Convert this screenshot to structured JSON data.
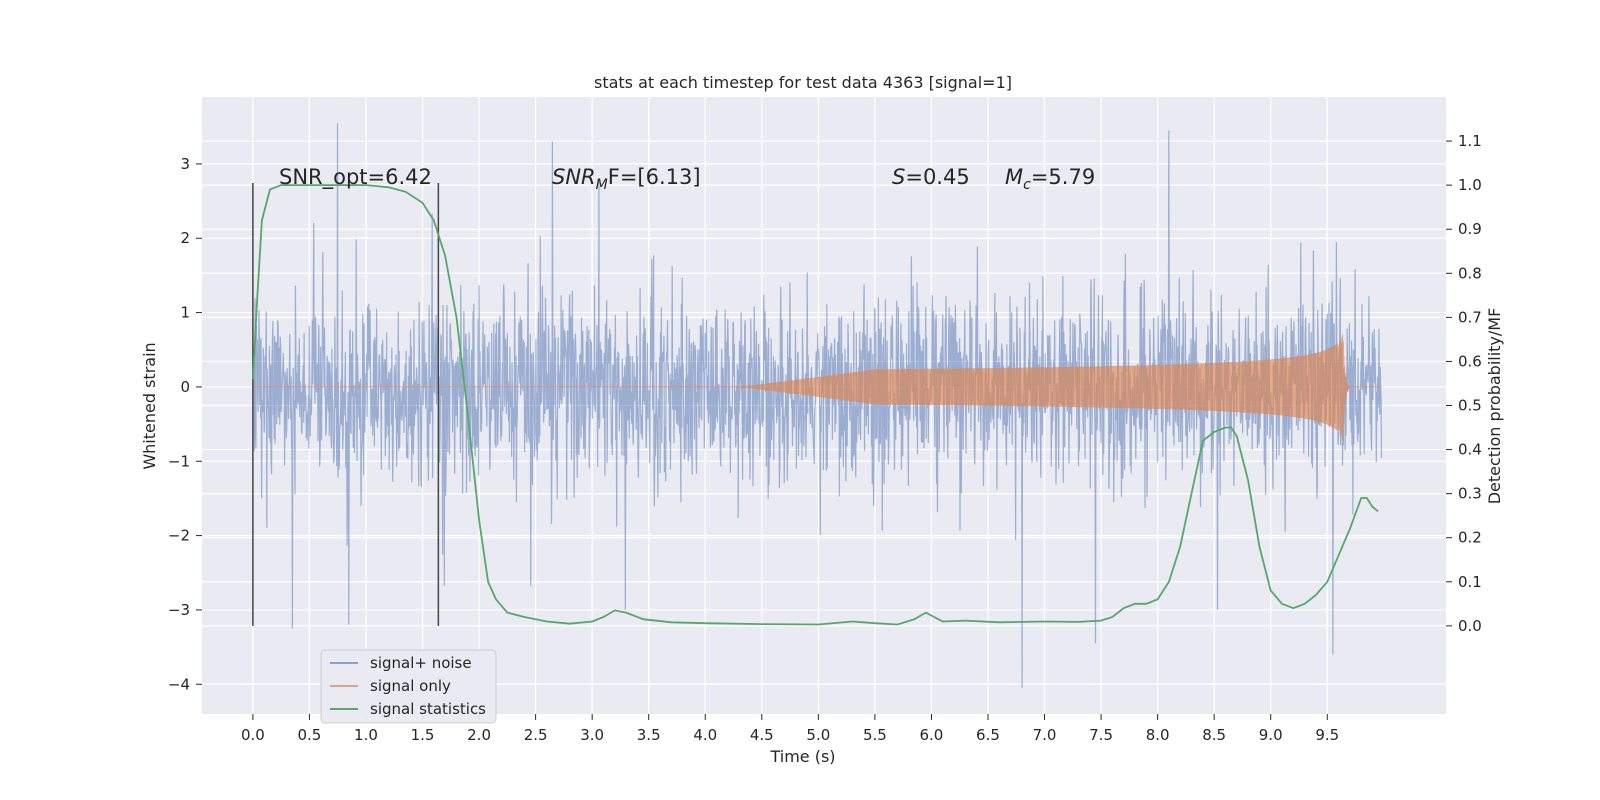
{
  "chart_data": {
    "type": "line",
    "title": "stats at each timestep for test data 4363 [signal=1]",
    "xlabel": "Time (s)",
    "ylabel": "Whitened strain",
    "y2label": "Detection probability/MF",
    "xlim": [
      -0.45,
      10.55
    ],
    "ylim": [
      -4.4,
      3.9
    ],
    "y2lim": [
      -0.2,
      1.2
    ],
    "x_ticks": [
      "0.0",
      "0.5",
      "1.0",
      "1.5",
      "2.0",
      "2.5",
      "3.0",
      "3.5",
      "4.0",
      "4.5",
      "5.0",
      "5.5",
      "6.0",
      "6.5",
      "7.0",
      "7.5",
      "8.0",
      "8.5",
      "9.0",
      "9.5"
    ],
    "y_ticks": [
      "3",
      "2",
      "1",
      "0",
      "−1",
      "−2",
      "−3",
      "−4"
    ],
    "y2_ticks": [
      "1.1",
      "1.0",
      "0.9",
      "0.8",
      "0.7",
      "0.6",
      "0.5",
      "0.4",
      "0.3",
      "0.2",
      "0.1",
      "0.0"
    ],
    "grid": true,
    "legend_position": "lower-left",
    "annotations": {
      "snr_opt": "SNR_opt=6.42",
      "snr_mf_sym": "SNR",
      "snr_mf_sub": "M",
      "snr_mf_rest": "F=[6.13]",
      "s_sym": "S",
      "s_val": "=0.45",
      "mc_sym": "M",
      "mc_sub": "c",
      "mc_val": "=5.79"
    },
    "vertical_lines_x": [
      0.0,
      1.64
    ],
    "series": [
      {
        "name": "signal+ noise",
        "color": "#4c72b0",
        "axis": "left",
        "t_range": [
          0.0,
          9.98
        ],
        "envelope_typical": [
          -1.6,
          1.6
        ],
        "extremes": [
          {
            "x": 0.75,
            "y": 3.55
          },
          {
            "x": 2.65,
            "y": 3.3
          },
          {
            "x": 8.1,
            "y": 3.45
          },
          {
            "x": 6.8,
            "y": -4.05
          },
          {
            "x": 9.55,
            "y": -3.6
          },
          {
            "x": 7.45,
            "y": -3.45
          },
          {
            "x": 0.35,
            "y": -3.25
          },
          {
            "x": 0.85,
            "y": -3.2
          }
        ]
      },
      {
        "name": "signal only",
        "color": "#dd8452",
        "axis": "left",
        "chirp_start": 4.3,
        "merger_time": 9.64,
        "peak_amplitude": 0.72,
        "t_end": 9.98
      },
      {
        "name": "signal statistics",
        "color": "#55a868",
        "axis": "right",
        "x": [
          0.0,
          0.04,
          0.08,
          0.15,
          0.25,
          0.4,
          0.6,
          0.8,
          1.0,
          1.2,
          1.35,
          1.5,
          1.6,
          1.7,
          1.8,
          1.9,
          2.0,
          2.08,
          2.15,
          2.25,
          2.4,
          2.6,
          2.8,
          3.0,
          3.1,
          3.2,
          3.3,
          3.45,
          3.7,
          4.0,
          4.5,
          5.0,
          5.3,
          5.5,
          5.7,
          5.85,
          5.95,
          6.1,
          6.3,
          6.6,
          7.0,
          7.3,
          7.5,
          7.6,
          7.7,
          7.8,
          7.9,
          8.0,
          8.1,
          8.2,
          8.3,
          8.4,
          8.5,
          8.6,
          8.65,
          8.7,
          8.8,
          8.9,
          9.0,
          9.1,
          9.2,
          9.3,
          9.4,
          9.5,
          9.6,
          9.7,
          9.8,
          9.85,
          9.9,
          9.95
        ],
        "y": [
          0.56,
          0.75,
          0.92,
          0.99,
          1.0,
          1.0,
          1.0,
          1.0,
          1.0,
          0.995,
          0.985,
          0.96,
          0.92,
          0.84,
          0.7,
          0.48,
          0.24,
          0.1,
          0.06,
          0.03,
          0.02,
          0.01,
          0.005,
          0.01,
          0.02,
          0.035,
          0.03,
          0.015,
          0.008,
          0.006,
          0.004,
          0.003,
          0.01,
          0.006,
          0.003,
          0.015,
          0.03,
          0.01,
          0.012,
          0.008,
          0.01,
          0.009,
          0.012,
          0.02,
          0.04,
          0.05,
          0.05,
          0.06,
          0.1,
          0.18,
          0.3,
          0.42,
          0.44,
          0.45,
          0.45,
          0.43,
          0.33,
          0.18,
          0.08,
          0.05,
          0.04,
          0.05,
          0.07,
          0.1,
          0.16,
          0.22,
          0.29,
          0.29,
          0.27,
          0.26
        ]
      }
    ]
  }
}
